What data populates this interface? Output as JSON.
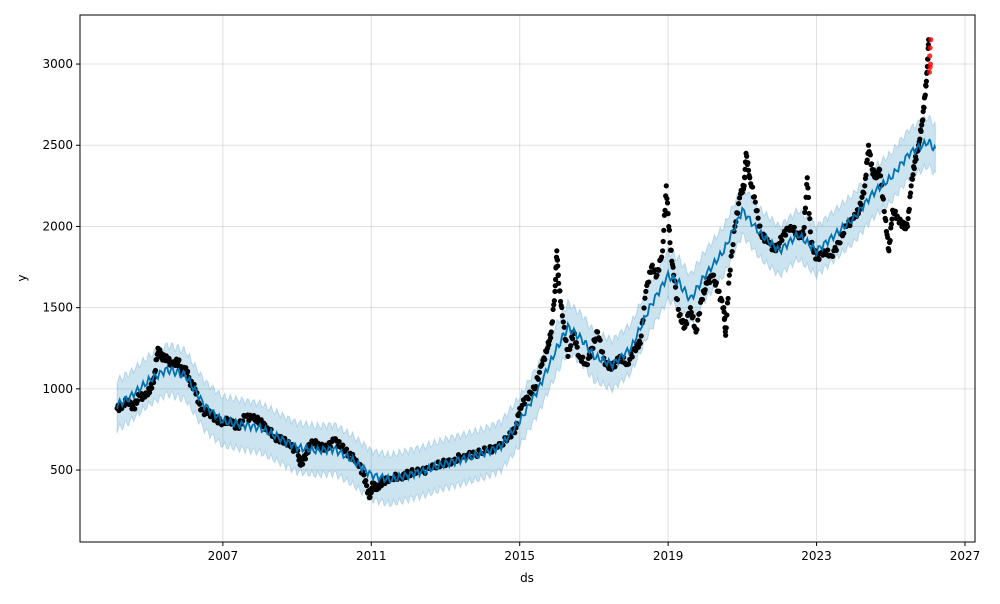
{
  "chart_data": {
    "type": "scatter",
    "title": "",
    "xlabel": "ds",
    "ylabel": "y",
    "xlim": [
      2003.15,
      2027.27
    ],
    "ylim": [
      57,
      3302
    ],
    "grid": true,
    "x_ticks": [
      2007,
      2011,
      2015,
      2019,
      2023,
      2027
    ],
    "x_tick_labels": [
      "2007",
      "2011",
      "2015",
      "2019",
      "2023",
      "2027"
    ],
    "y_ticks": [
      500,
      1000,
      1500,
      2000,
      2500,
      3000
    ],
    "y_tick_labels": [
      "500",
      "1000",
      "1500",
      "2000",
      "2500",
      "3000"
    ],
    "colors": {
      "actual": "#000000",
      "recent": "#ff0000",
      "forecast": "#0072B2",
      "band": "#0072B2"
    },
    "forecast": {
      "x": [
        2004.15,
        2004.5,
        2005.0,
        2005.5,
        2005.8,
        2006.0,
        2006.5,
        2007.0,
        2007.5,
        2008.0,
        2008.5,
        2009.0,
        2009.5,
        2010.0,
        2010.5,
        2011.0,
        2011.5,
        2012.0,
        2012.5,
        2013.0,
        2013.5,
        2014.0,
        2014.5,
        2015.0,
        2015.5,
        2016.0,
        2016.3,
        2016.7,
        2017.0,
        2017.5,
        2018.0,
        2018.5,
        2019.0,
        2019.3,
        2019.6,
        2020.0,
        2020.5,
        2021.0,
        2021.5,
        2022.0,
        2022.5,
        2023.0,
        2023.5,
        2024.0,
        2024.5,
        2025.0,
        2025.5,
        2026.0,
        2026.2
      ],
      "yhat": [
        900,
        950,
        1050,
        1120,
        1100,
        1080,
        900,
        800,
        780,
        760,
        700,
        640,
        620,
        630,
        560,
        470,
        440,
        470,
        500,
        540,
        570,
        600,
        650,
        800,
        1000,
        1250,
        1380,
        1300,
        1200,
        1150,
        1250,
        1500,
        1700,
        1650,
        1550,
        1700,
        1850,
        2100,
        1950,
        1850,
        1950,
        1850,
        1950,
        2050,
        2200,
        2300,
        2450,
        2520,
        2480
      ],
      "band_halfwidth": 150
    },
    "actual": {
      "x": [
        2004.15,
        2004.3,
        2004.45,
        2004.6,
        2004.75,
        2004.9,
        2005.05,
        2005.15,
        2005.25,
        2005.35,
        2005.5,
        2005.65,
        2005.8,
        2005.9,
        2006.0,
        2006.1,
        2006.25,
        2006.4,
        2006.6,
        2006.8,
        2007.0,
        2007.2,
        2007.4,
        2007.6,
        2007.8,
        2008.0,
        2008.2,
        2008.4,
        2008.6,
        2008.8,
        2009.0,
        2009.1,
        2009.25,
        2009.4,
        2009.6,
        2009.8,
        2010.0,
        2010.2,
        2010.4,
        2010.6,
        2010.8,
        2010.95,
        2011.05,
        2011.15,
        2011.3,
        2011.5,
        2011.8,
        2012.0,
        2012.3,
        2012.6,
        2012.9,
        2013.2,
        2013.5,
        2013.8,
        2014.1,
        2014.4,
        2014.7,
        2014.9,
        2015.0,
        2015.2,
        2015.4,
        2015.6,
        2015.75,
        2015.85,
        2015.95,
        2016.0,
        2016.05,
        2016.15,
        2016.3,
        2016.45,
        2016.6,
        2016.8,
        2016.95,
        2017.1,
        2017.3,
        2017.5,
        2017.7,
        2017.9,
        2018.1,
        2018.25,
        2018.4,
        2018.55,
        2018.7,
        2018.85,
        2018.95,
        2019.05,
        2019.15,
        2019.3,
        2019.45,
        2019.6,
        2019.75,
        2019.9,
        2020.05,
        2020.2,
        2020.35,
        2020.5,
        2020.55,
        2020.65,
        2020.8,
        2020.95,
        2021.05,
        2021.1,
        2021.2,
        2021.35,
        2021.5,
        2021.7,
        2021.9,
        2022.1,
        2022.3,
        2022.5,
        2022.65,
        2022.75,
        2022.85,
        2023.0,
        2023.2,
        2023.4,
        2023.6,
        2023.8,
        2024.0,
        2024.15,
        2024.3,
        2024.4,
        2024.5,
        2024.6,
        2024.7,
        2024.85,
        2024.95,
        2025.05,
        2025.2,
        2025.35,
        2025.45,
        2025.55,
        2025.65,
        2025.75,
        2025.85,
        2025.92,
        2025.98,
        2026.02
      ],
      "y": [
        880,
        900,
        930,
        880,
        960,
        950,
        1000,
        1070,
        1250,
        1200,
        1180,
        1150,
        1170,
        1100,
        1130,
        1050,
        1000,
        870,
        850,
        820,
        790,
        810,
        760,
        830,
        820,
        800,
        760,
        700,
        690,
        650,
        620,
        530,
        600,
        680,
        650,
        630,
        690,
        640,
        600,
        560,
        470,
        330,
        420,
        380,
        430,
        450,
        460,
        480,
        490,
        510,
        540,
        560,
        590,
        600,
        620,
        640,
        700,
        760,
        880,
        950,
        1000,
        1150,
        1250,
        1350,
        1600,
        1850,
        1650,
        1450,
        1200,
        1350,
        1200,
        1150,
        1250,
        1350,
        1150,
        1130,
        1200,
        1150,
        1250,
        1280,
        1600,
        1750,
        1700,
        1850,
        2250,
        1900,
        1700,
        1450,
        1380,
        1500,
        1350,
        1550,
        1650,
        1700,
        1600,
        1500,
        1330,
        1700,
        2000,
        2200,
        2250,
        2450,
        2300,
        2150,
        1950,
        1900,
        1850,
        1950,
        2000,
        1950,
        1950,
        2300,
        1900,
        1800,
        1850,
        1820,
        1900,
        2000,
        2050,
        2100,
        2250,
        2500,
        2350,
        2300,
        2350,
        2050,
        1850,
        2100,
        2050,
        2000,
        2000,
        2250,
        2400,
        2500,
        2650,
        2800,
        2950,
        3150
      ]
    },
    "recent": {
      "x": [
        2026.04,
        2026.05,
        2026.06,
        2026.07,
        2026.08,
        2026.06
      ],
      "y": [
        2950,
        3050,
        3100,
        3000,
        3150,
        2980
      ]
    }
  }
}
